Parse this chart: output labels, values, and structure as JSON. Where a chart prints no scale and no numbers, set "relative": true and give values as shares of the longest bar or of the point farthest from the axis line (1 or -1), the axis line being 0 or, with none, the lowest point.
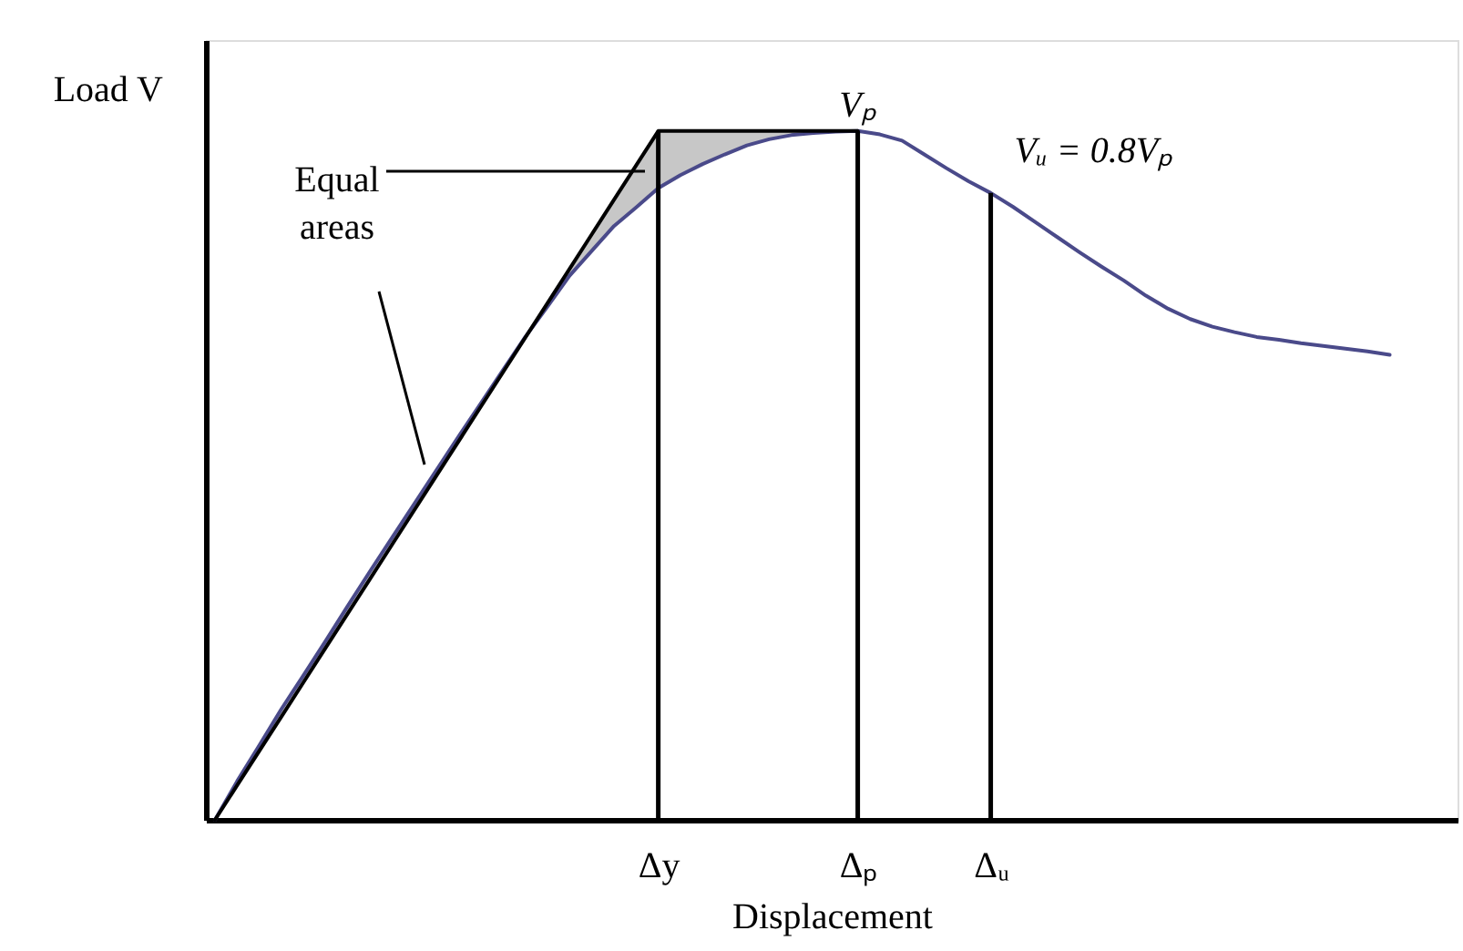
{
  "chart_data": {
    "type": "line",
    "relative": true,
    "ylabel": "Load V",
    "xlabel": "Displacement",
    "categories": [
      null,
      null,
      null,
      null,
      null,
      null,
      null,
      null,
      null,
      null,
      null,
      null,
      null,
      null,
      null,
      null,
      null,
      null,
      null,
      null,
      "Δy",
      null,
      null,
      null,
      null,
      null,
      null,
      null,
      null,
      "Δₚ",
      null,
      null,
      null,
      null,
      null,
      "Δᵤ",
      null,
      null,
      null,
      null,
      null,
      null,
      null,
      null,
      null,
      null,
      null,
      null,
      null,
      null,
      null,
      null,
      null,
      null
    ],
    "tick_labels": "x",
    "legend": false,
    "marker": "none",
    "line_style": "solid",
    "series": [
      {
        "color": "#4a4a8a",
        "values": [
          0,
          0.056,
          0.108,
          0.161,
          0.21,
          0.26,
          0.311,
          0.361,
          0.41,
          0.459,
          0.508,
          0.557,
          0.605,
          0.653,
          0.701,
          0.745,
          0.79,
          0.826,
          0.862,
          0.889,
          0.917,
          0.936,
          0.952,
          0.966,
          0.979,
          0.988,
          0.994,
          0.997,
          0.999,
          1,
          0.995,
          0.986,
          0.966,
          0.946,
          0.927,
          0.91,
          0.89,
          0.868,
          0.846,
          0.824,
          0.803,
          0.783,
          0.761,
          0.742,
          0.727,
          0.716,
          0.708,
          0.701,
          0.697,
          0.692,
          0.688,
          0.684,
          0.68,
          0.675
        ]
      },
      {
        "color": "#000000",
        "values": [
          0,
          0.05,
          0.1,
          0.15,
          0.2,
          0.25,
          0.3,
          0.35,
          0.4,
          0.45,
          0.5,
          0.55,
          0.6,
          0.65,
          0.7,
          0.75,
          0.8,
          0.85,
          0.9,
          0.95,
          1,
          1,
          1,
          1,
          1,
          1,
          1,
          1,
          1,
          1,
          null,
          null,
          null,
          null,
          null,
          null,
          null,
          null,
          null,
          null,
          null,
          null,
          null,
          null,
          null,
          null,
          null,
          null,
          null,
          null,
          null,
          null,
          null,
          null
        ],
        "lower": [
          0,
          0.05,
          0.1,
          0.15,
          0.2,
          0.25,
          0.3,
          0.35,
          0.4,
          0.45,
          0.5,
          0.55,
          0.6,
          0.65,
          0.7,
          0.745,
          0.79,
          0.826,
          0.862,
          0.889,
          0.917,
          0.936,
          0.952,
          0.966,
          0.979,
          0.988,
          0.994,
          0.997,
          0.999,
          1,
          null,
          null,
          null,
          null,
          null,
          null,
          null,
          null,
          null,
          null,
          null,
          null,
          null,
          null,
          null,
          null,
          null,
          null,
          null,
          null,
          null,
          null,
          null,
          null
        ],
        "upper": [
          0,
          0.056,
          0.108,
          0.161,
          0.21,
          0.26,
          0.311,
          0.361,
          0.41,
          0.459,
          0.508,
          0.557,
          0.605,
          0.653,
          0.701,
          0.75,
          0.8,
          0.85,
          0.9,
          0.95,
          1,
          1,
          1,
          1,
          1,
          1,
          1,
          1,
          1,
          1,
          null,
          null,
          null,
          null,
          null,
          null,
          null,
          null,
          null,
          null,
          null,
          null,
          null,
          null,
          null,
          null,
          null,
          null,
          null,
          null,
          null,
          null,
          null,
          null
        ]
      },
      {
        "type": "bar",
        "color": "#000000",
        "values": [
          null,
          null,
          null,
          null,
          null,
          null,
          null,
          null,
          null,
          null,
          null,
          null,
          null,
          null,
          null,
          null,
          null,
          null,
          null,
          null,
          1,
          null,
          null,
          null,
          null,
          null,
          null,
          null,
          null,
          1,
          null,
          null,
          null,
          null,
          null,
          0.91,
          null,
          null,
          null,
          null,
          null,
          null,
          null,
          null,
          null,
          null,
          null,
          null,
          null,
          null,
          null,
          null,
          null,
          null
        ]
      }
    ],
    "annotations": [
      "Equal areas",
      {
        "text": "Vₚ",
        "x": "Δₚ",
        "y": 1
      },
      {
        "text": "Vᵤ = 0.8Vₚ",
        "x": "Δᵤ",
        "y": 0.91
      }
    ]
  }
}
